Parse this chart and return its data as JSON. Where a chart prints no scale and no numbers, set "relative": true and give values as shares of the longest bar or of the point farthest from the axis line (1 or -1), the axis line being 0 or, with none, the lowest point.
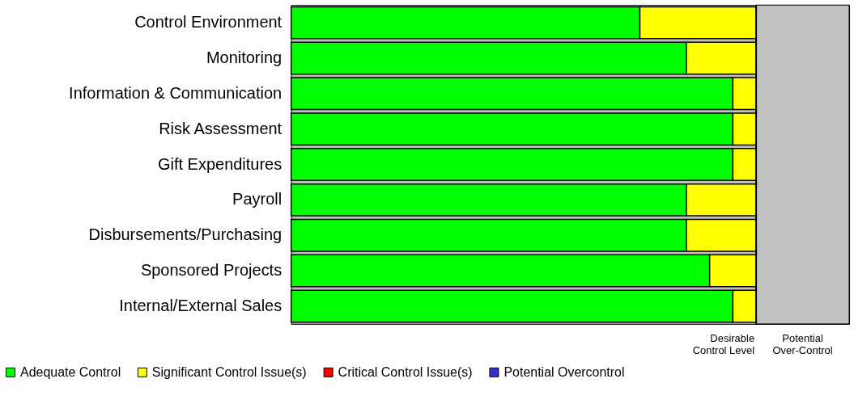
{
  "chart_data": {
    "type": "bar",
    "orientation": "horizontal",
    "stacked": true,
    "relative": true,
    "categories": [
      "Control Environment",
      "Monitoring",
      "Information & Communication",
      "Risk Assessment",
      "Gift Expenditures",
      "Payroll",
      "Disbursements/Purchasing",
      "Sponsored Projects",
      "Internal/External Sales"
    ],
    "series": [
      {
        "name": "Adequate Control",
        "color": "#00ff00",
        "values": [
          0.75,
          0.85,
          0.95,
          0.95,
          0.95,
          0.85,
          0.85,
          0.9,
          0.95
        ]
      },
      {
        "name": "Significant Control Issue(s)",
        "color": "#ffff00",
        "values": [
          0.25,
          0.15,
          0.05,
          0.05,
          0.05,
          0.15,
          0.15,
          0.1,
          0.05
        ]
      },
      {
        "name": "Critical Control Issue(s)",
        "color": "#ff0000",
        "values": [
          null,
          null,
          null,
          null,
          null,
          null,
          null,
          null,
          null
        ]
      },
      {
        "name": "Potential Overcontrol",
        "color": "#3333cc",
        "values": [
          null,
          null,
          null,
          null,
          null,
          null,
          null,
          null,
          null
        ]
      }
    ],
    "ref_lines": [
      {
        "axis": "x",
        "value": 1,
        "label": "Desirable\nControl Level",
        "color": "#000000"
      }
    ],
    "bands": [
      {
        "axis": "x",
        "from": 1,
        "to": 1.2,
        "label": "Potential\nOver-Control",
        "color": "#c0c0c0"
      }
    ],
    "legend": "bottom left"
  }
}
